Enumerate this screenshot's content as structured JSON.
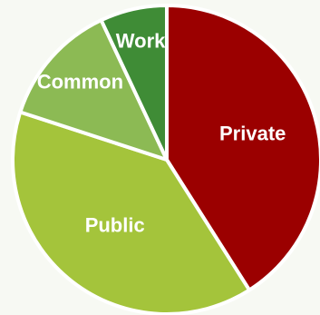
{
  "chart_data": {
    "type": "pie",
    "categories": [
      "Private",
      "Public",
      "Common",
      "Work"
    ],
    "values": [
      41,
      39,
      13,
      7
    ],
    "colors": [
      "#9b0000",
      "#a4c43b",
      "#8cba54",
      "#3f8c36"
    ],
    "data_labels": [
      "Private",
      "Public",
      "Common",
      "Work"
    ],
    "legend": "none"
  }
}
